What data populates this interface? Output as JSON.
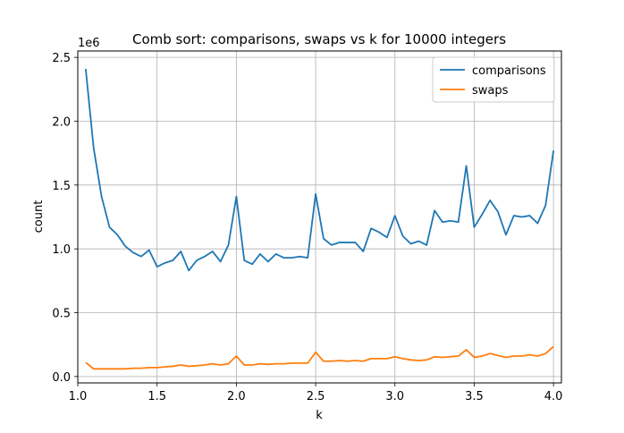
{
  "chart_data": {
    "type": "line",
    "title": "Comb sort: comparisons, swaps vs k for 10000 integers",
    "xlabel": "k",
    "ylabel": "count",
    "y_offset_label": "1e6",
    "xlim": [
      1.0,
      4.05
    ],
    "ylim": [
      -0.05,
      2.55
    ],
    "x_ticks": [
      1.0,
      1.5,
      2.0,
      2.5,
      3.0,
      3.5,
      4.0
    ],
    "x_tick_labels": [
      "1.0",
      "1.5",
      "2.0",
      "2.5",
      "3.0",
      "3.5",
      "4.0"
    ],
    "y_ticks": [
      0.0,
      0.5,
      1.0,
      1.5,
      2.0,
      2.5
    ],
    "y_tick_labels": [
      "0.0",
      "0.5",
      "1.0",
      "1.5",
      "2.0",
      "2.5"
    ],
    "grid": true,
    "legend_position": "top-right",
    "x": [
      1.05,
      1.1,
      1.15,
      1.2,
      1.25,
      1.3,
      1.35,
      1.4,
      1.45,
      1.5,
      1.55,
      1.6,
      1.65,
      1.7,
      1.75,
      1.8,
      1.85,
      1.9,
      1.95,
      2.0,
      2.05,
      2.1,
      2.15,
      2.2,
      2.25,
      2.3,
      2.35,
      2.4,
      2.45,
      2.5,
      2.55,
      2.6,
      2.65,
      2.7,
      2.75,
      2.8,
      2.85,
      2.9,
      2.95,
      3.0,
      3.05,
      3.1,
      3.15,
      3.2,
      3.25,
      3.3,
      3.35,
      3.4,
      3.45,
      3.5,
      3.55,
      3.6,
      3.65,
      3.7,
      3.75,
      3.8,
      3.85,
      3.9,
      3.95,
      4.0
    ],
    "series": [
      {
        "name": "comparisons",
        "color": "#1f77b4",
        "values": [
          2.41,
          1.79,
          1.41,
          1.17,
          1.11,
          1.02,
          0.97,
          0.94,
          0.99,
          0.86,
          0.89,
          0.91,
          0.98,
          0.83,
          0.91,
          0.94,
          0.98,
          0.9,
          1.03,
          1.41,
          0.91,
          0.88,
          0.96,
          0.9,
          0.96,
          0.93,
          0.93,
          0.94,
          0.93,
          1.43,
          1.08,
          1.03,
          1.05,
          1.05,
          1.05,
          0.98,
          1.16,
          1.13,
          1.09,
          1.26,
          1.1,
          1.04,
          1.06,
          1.03,
          1.3,
          1.21,
          1.22,
          1.21,
          1.65,
          1.17,
          1.27,
          1.38,
          1.29,
          1.11,
          1.26,
          1.25,
          1.26,
          1.2,
          1.34,
          1.77
        ]
      },
      {
        "name": "swaps",
        "color": "#ff7f0e",
        "values": [
          0.11,
          0.06,
          0.06,
          0.06,
          0.06,
          0.06,
          0.065,
          0.065,
          0.07,
          0.07,
          0.075,
          0.08,
          0.09,
          0.08,
          0.085,
          0.09,
          0.1,
          0.09,
          0.1,
          0.16,
          0.09,
          0.09,
          0.1,
          0.095,
          0.1,
          0.1,
          0.105,
          0.105,
          0.105,
          0.19,
          0.12,
          0.12,
          0.125,
          0.12,
          0.125,
          0.12,
          0.14,
          0.14,
          0.14,
          0.155,
          0.14,
          0.13,
          0.125,
          0.13,
          0.155,
          0.15,
          0.155,
          0.16,
          0.21,
          0.15,
          0.16,
          0.18,
          0.165,
          0.15,
          0.16,
          0.16,
          0.17,
          0.16,
          0.18,
          0.235
        ]
      }
    ]
  }
}
